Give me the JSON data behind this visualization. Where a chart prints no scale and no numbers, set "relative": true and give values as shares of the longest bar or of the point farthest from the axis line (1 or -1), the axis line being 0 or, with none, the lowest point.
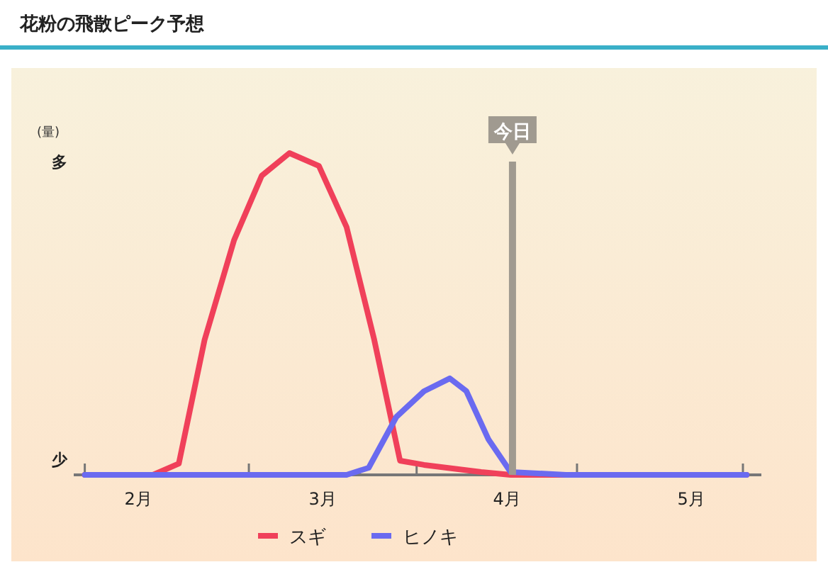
{
  "chart_data": {
    "type": "line",
    "title": "花粉の飛散ピーク予想",
    "ylabel": "(量)",
    "annotations": [
      "多",
      "少"
    ],
    "relative": true,
    "xlim": [
      1.65,
      5.38
    ],
    "xticks": [
      {
        "value": 1.71,
        "label": null
      },
      {
        "value": 2.6,
        "label": null
      },
      {
        "value": 3.51,
        "label": null
      },
      {
        "value": 4.38,
        "label": null
      },
      {
        "value": 5.28,
        "label": null
      },
      {
        "value": 2,
        "label": "2月"
      },
      {
        "value": 3,
        "label": "3月"
      },
      {
        "value": 4,
        "label": "4月"
      },
      {
        "value": 5,
        "label": "5月"
      }
    ],
    "legend": "bottom",
    "grid": false,
    "marker": "none",
    "line_style": "solid",
    "ref_lines": [
      {
        "axis": "x",
        "value": 4.03,
        "label": "今日",
        "color": "#a09a90"
      }
    ],
    "series": [
      {
        "name": "スギ",
        "color": "#f0405a",
        "x": [
          1.71,
          2.08,
          2.22,
          2.36,
          2.52,
          2.67,
          2.82,
          2.98,
          3.13,
          3.28,
          3.42,
          3.55,
          3.86,
          4.02,
          5.3
        ],
        "values": [
          0,
          0,
          0.035,
          0.42,
          0.73,
          0.93,
          1,
          0.96,
          0.77,
          0.42,
          0.044,
          0.031,
          0.009,
          0,
          0
        ]
      },
      {
        "name": "ヒノキ",
        "color": "#6a6af0",
        "x": [
          1.71,
          3.13,
          3.25,
          3.4,
          3.55,
          3.69,
          3.78,
          3.9,
          4.02,
          4.32,
          5.3
        ],
        "values": [
          0,
          0,
          0.022,
          0.18,
          0.26,
          0.3,
          0.26,
          0.11,
          0.009,
          0,
          0
        ]
      }
    ]
  }
}
